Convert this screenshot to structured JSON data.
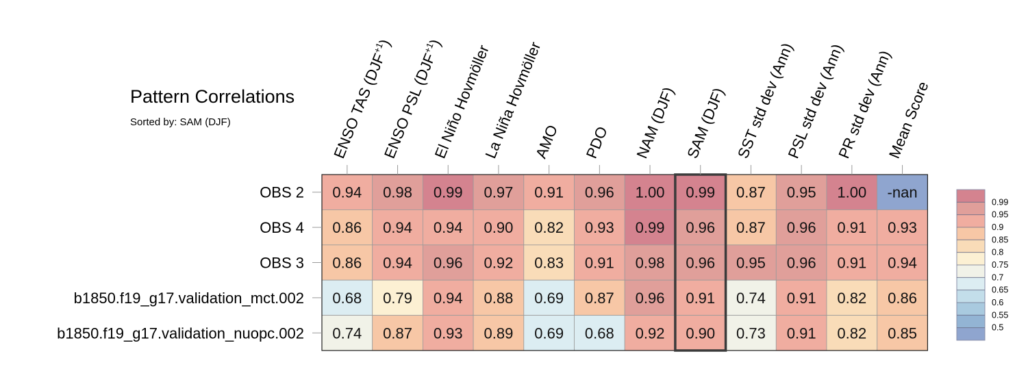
{
  "chart_data": {
    "type": "heatmap",
    "title": "Pattern Correlations",
    "subtitle": "Sorted by: SAM (DJF)",
    "columns": [
      "ENSO TAS (DJF+1)",
      "ENSO PSL (DJF+1)",
      "El Niño Hovmöller",
      "La Niña Hovmöller",
      "AMO",
      "PDO",
      "NAM (DJF)",
      "SAM (DJF)",
      "SST std dev (Ann)",
      "PSL std dev (Ann)",
      "PR std dev (Ann)",
      "Mean Score"
    ],
    "rows": [
      "OBS 2",
      "OBS 4",
      "OBS 3",
      "b1850.f19_g17.validation_mct.002",
      "b1850.f19_g17.validation_nuopc.002"
    ],
    "values": [
      [
        "0.94",
        "0.98",
        "0.99",
        "0.97",
        "0.91",
        "0.96",
        "1.00",
        "0.99",
        "0.87",
        "0.95",
        "1.00",
        "-nan"
      ],
      [
        "0.86",
        "0.94",
        "0.94",
        "0.90",
        "0.82",
        "0.93",
        "0.99",
        "0.96",
        "0.87",
        "0.96",
        "0.91",
        "0.93"
      ],
      [
        "0.86",
        "0.94",
        "0.96",
        "0.92",
        "0.83",
        "0.91",
        "0.98",
        "0.96",
        "0.95",
        "0.96",
        "0.91",
        "0.94"
      ],
      [
        "0.68",
        "0.79",
        "0.94",
        "0.88",
        "0.69",
        "0.87",
        "0.96",
        "0.91",
        "0.74",
        "0.91",
        "0.82",
        "0.86"
      ],
      [
        "0.74",
        "0.87",
        "0.93",
        "0.89",
        "0.69",
        "0.68",
        "0.92",
        "0.90",
        "0.73",
        "0.91",
        "0.82",
        "0.85"
      ]
    ],
    "highlighted_column": "SAM (DJF)",
    "nan_color": "#8fa5cf",
    "colorbar": {
      "labels": [
        "0.99",
        "0.95",
        "0.9",
        "0.85",
        "0.8",
        "0.75",
        "0.7",
        "0.65",
        "0.6",
        "0.55",
        "0.5"
      ],
      "bins": [
        {
          "min": 0.99,
          "color": "#d4838f"
        },
        {
          "min": 0.95,
          "color": "#e09f9a"
        },
        {
          "min": 0.9,
          "color": "#f0ada0"
        },
        {
          "min": 0.85,
          "color": "#f7c7a6"
        },
        {
          "min": 0.8,
          "color": "#f9dcb8"
        },
        {
          "min": 0.75,
          "color": "#fcf0d3"
        },
        {
          "min": 0.7,
          "color": "#f1f2e8"
        },
        {
          "min": 0.65,
          "color": "#dcedf2"
        },
        {
          "min": 0.6,
          "color": "#c3deea"
        },
        {
          "min": 0.55,
          "color": "#a9cadf"
        },
        {
          "min": 0.5,
          "color": "#93b4d4"
        },
        {
          "min": -1,
          "color": "#8fa5cf"
        }
      ]
    }
  }
}
